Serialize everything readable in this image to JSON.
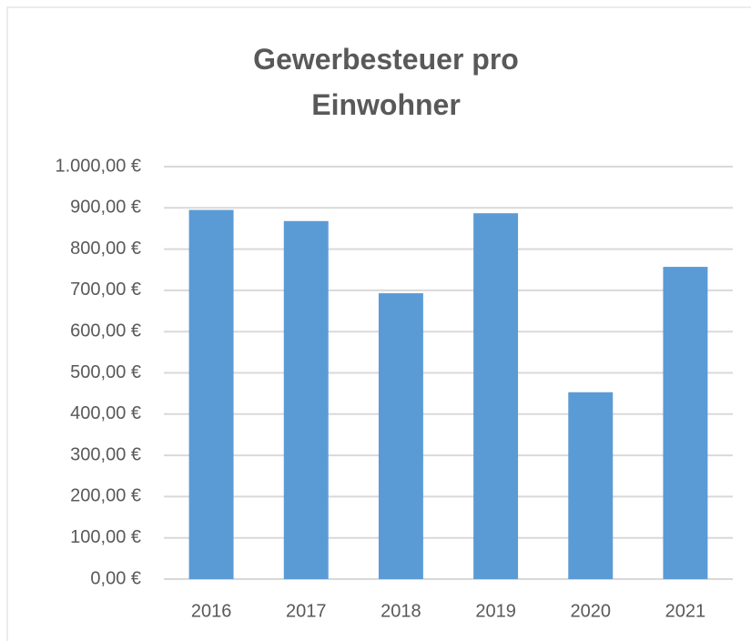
{
  "chart_data": {
    "type": "bar",
    "title": "Gewerbesteuer pro Einwohner",
    "categories": [
      "2016",
      "2017",
      "2018",
      "2019",
      "2020",
      "2021"
    ],
    "values": [
      895,
      868,
      693,
      887,
      453,
      757
    ],
    "color": "#5b9bd5",
    "ylim": [
      0,
      1000
    ],
    "yticks": [
      {
        "value": 0,
        "label": "0,00 €"
      },
      {
        "value": 100,
        "label": "100,00 €"
      },
      {
        "value": 200,
        "label": "200,00 €"
      },
      {
        "value": 300,
        "label": "300,00 €"
      },
      {
        "value": 400,
        "label": "400,00 €"
      },
      {
        "value": 500,
        "label": "500,00 €"
      },
      {
        "value": 600,
        "label": "600,00 €"
      },
      {
        "value": 700,
        "label": "700,00 €"
      },
      {
        "value": 800,
        "label": "800,00 €"
      },
      {
        "value": 900,
        "label": "900,00 €"
      },
      {
        "value": 1000,
        "label": "1.000,00 €"
      }
    ],
    "grid": true
  }
}
